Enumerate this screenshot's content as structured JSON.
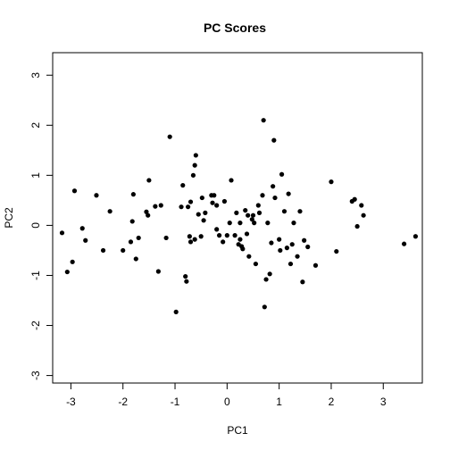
{
  "chart_data": {
    "type": "scatter",
    "title": "PC Scores",
    "xlabel": "PC1",
    "ylabel": "PC2",
    "xlim": [
      -3.35,
      3.75
    ],
    "ylim": [
      -3.15,
      3.45
    ],
    "xticks": [
      -3,
      -2,
      -1,
      0,
      1,
      2,
      3
    ],
    "yticks": [
      -3,
      -2,
      -1,
      0,
      1,
      2,
      3
    ],
    "grid": false,
    "point_color": "#000000",
    "points": [
      [
        -3.17,
        -0.15
      ],
      [
        -3.07,
        -0.93
      ],
      [
        -2.97,
        -0.73
      ],
      [
        -2.93,
        0.69
      ],
      [
        -2.78,
        -0.06
      ],
      [
        -2.72,
        -0.3
      ],
      [
        -2.51,
        0.6
      ],
      [
        -2.38,
        -0.5
      ],
      [
        -2.25,
        0.28
      ],
      [
        -2.0,
        -0.5
      ],
      [
        -1.85,
        -0.33
      ],
      [
        -1.82,
        0.08
      ],
      [
        -1.8,
        0.62
      ],
      [
        -1.75,
        -0.67
      ],
      [
        -1.7,
        -0.25
      ],
      [
        -1.55,
        0.27
      ],
      [
        -1.52,
        0.2
      ],
      [
        -1.5,
        0.9
      ],
      [
        -1.38,
        0.38
      ],
      [
        -1.32,
        -0.92
      ],
      [
        -1.27,
        0.4
      ],
      [
        -1.17,
        -0.25
      ],
      [
        -1.1,
        1.77
      ],
      [
        -0.98,
        -1.73
      ],
      [
        -0.88,
        0.37
      ],
      [
        -0.85,
        0.8
      ],
      [
        -0.8,
        -1.02
      ],
      [
        -0.78,
        -1.12
      ],
      [
        -0.75,
        0.37
      ],
      [
        -0.72,
        -0.22
      ],
      [
        -0.7,
        0.47
      ],
      [
        -0.7,
        -0.33
      ],
      [
        -0.65,
        1.0
      ],
      [
        -0.62,
        -0.28
      ],
      [
        -0.62,
        1.2
      ],
      [
        -0.6,
        1.4
      ],
      [
        -0.55,
        0.22
      ],
      [
        -0.5,
        -0.22
      ],
      [
        -0.48,
        0.55
      ],
      [
        -0.45,
        0.1
      ],
      [
        -0.42,
        0.25
      ],
      [
        -0.3,
        0.6
      ],
      [
        -0.28,
        0.45
      ],
      [
        -0.25,
        0.6
      ],
      [
        -0.2,
        0.4
      ],
      [
        -0.2,
        -0.08
      ],
      [
        -0.15,
        -0.2
      ],
      [
        -0.08,
        -0.33
      ],
      [
        -0.05,
        0.48
      ],
      [
        0.0,
        -0.2
      ],
      [
        0.05,
        0.05
      ],
      [
        0.08,
        0.9
      ],
      [
        0.15,
        -0.2
      ],
      [
        0.18,
        0.25
      ],
      [
        0.22,
        -0.38
      ],
      [
        0.25,
        0.05
      ],
      [
        0.25,
        -0.28
      ],
      [
        0.28,
        -0.42
      ],
      [
        0.3,
        -0.47
      ],
      [
        0.35,
        0.3
      ],
      [
        0.38,
        -0.17
      ],
      [
        0.4,
        0.2
      ],
      [
        0.42,
        -0.62
      ],
      [
        0.48,
        0.12
      ],
      [
        0.5,
        0.2
      ],
      [
        0.52,
        0.05
      ],
      [
        0.55,
        -0.77
      ],
      [
        0.6,
        0.4
      ],
      [
        0.62,
        0.25
      ],
      [
        0.68,
        0.6
      ],
      [
        0.7,
        2.1
      ],
      [
        0.72,
        -1.63
      ],
      [
        0.75,
        -1.08
      ],
      [
        0.78,
        0.05
      ],
      [
        0.82,
        -0.97
      ],
      [
        0.85,
        -0.35
      ],
      [
        0.88,
        0.78
      ],
      [
        0.9,
        1.7
      ],
      [
        0.92,
        0.55
      ],
      [
        1.0,
        -0.28
      ],
      [
        1.02,
        -0.5
      ],
      [
        1.05,
        1.02
      ],
      [
        1.1,
        0.28
      ],
      [
        1.15,
        -0.45
      ],
      [
        1.18,
        0.63
      ],
      [
        1.22,
        -0.77
      ],
      [
        1.25,
        -0.38
      ],
      [
        1.28,
        0.05
      ],
      [
        1.35,
        -0.62
      ],
      [
        1.4,
        0.28
      ],
      [
        1.45,
        -1.13
      ],
      [
        1.48,
        -0.3
      ],
      [
        1.55,
        -0.43
      ],
      [
        1.7,
        -0.8
      ],
      [
        2.0,
        0.87
      ],
      [
        2.1,
        -0.52
      ],
      [
        2.4,
        0.48
      ],
      [
        2.45,
        0.52
      ],
      [
        2.5,
        -0.02
      ],
      [
        2.58,
        0.4
      ],
      [
        2.62,
        0.2
      ],
      [
        3.4,
        -0.37
      ],
      [
        3.62,
        -0.22
      ]
    ]
  }
}
